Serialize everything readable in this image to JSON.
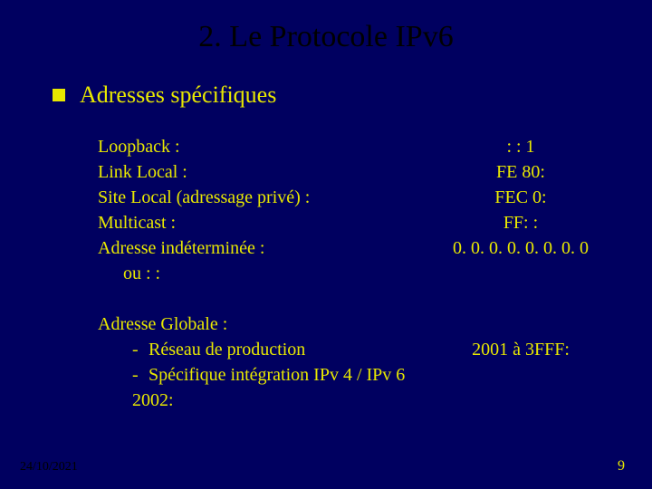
{
  "title": "2. Le Protocole IPv6",
  "section_title": "Adresses spécifiques",
  "addresses": [
    {
      "label": "Loopback :",
      "value": ": : 1"
    },
    {
      "label": "Link Local :",
      "value": "FE 80:"
    },
    {
      "label": "Site Local (adressage privé) :",
      "value": "FEC 0:"
    },
    {
      "label": "Multicast :",
      "value": "FF: :"
    },
    {
      "label": "Adresse indéterminée :",
      "value": "0. 0. 0. 0. 0. 0. 0. 0"
    }
  ],
  "undetermined_alt": "ou : :",
  "global": {
    "heading": "Adresse Globale :",
    "items": [
      {
        "label": "Réseau de production",
        "value": "2001 à 3FFF:"
      },
      {
        "label": "Spécifique intégration IPv 4 / IPv 6 2002:",
        "value": ""
      }
    ]
  },
  "footer": {
    "date": "24/10/2021",
    "page": "9"
  },
  "colors": {
    "background": "#000060",
    "text": "#e8e800",
    "title": "#000000"
  }
}
